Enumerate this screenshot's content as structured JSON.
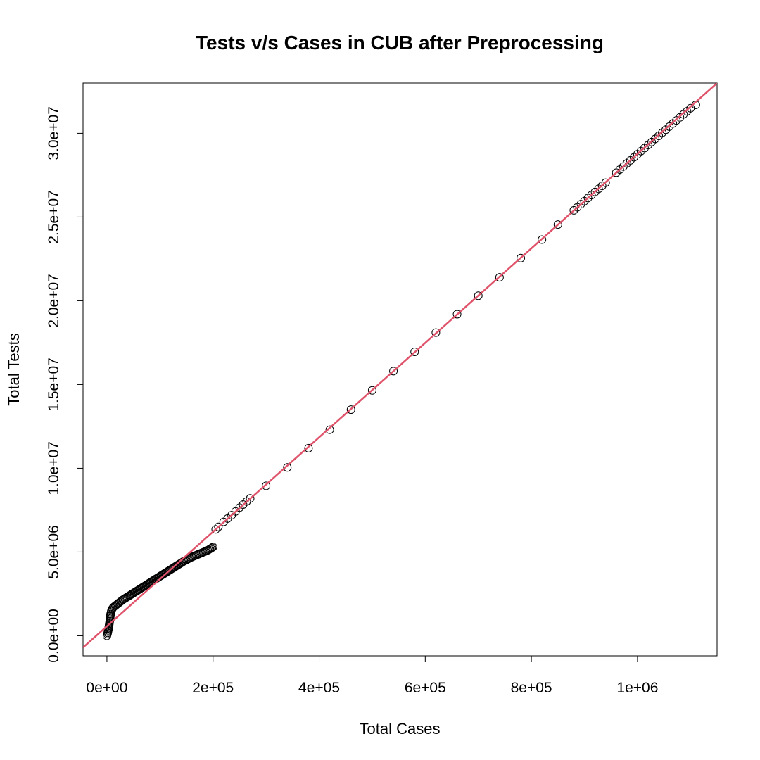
{
  "chart_data": {
    "type": "scatter",
    "title": "Tests v/s Cases in CUB after Preprocessing",
    "xlabel": "Total Cases",
    "ylabel": "Total Tests",
    "xlim": [
      -45000,
      1150000
    ],
    "ylim": [
      -1200000,
      33000000
    ],
    "x_ticks": [
      0,
      200000,
      400000,
      600000,
      800000,
      1000000
    ],
    "x_tick_labels": [
      "0e+00",
      "2e+05",
      "4e+05",
      "6e+05",
      "8e+05",
      "1e+06"
    ],
    "y_ticks": [
      0,
      5000000,
      10000000,
      15000000,
      20000000,
      25000000,
      30000000
    ],
    "y_tick_labels": [
      "0.0e+00",
      "5.0e+06",
      "1.0e+07",
      "1.5e+07",
      "2.0e+07",
      "2.5e+07",
      "3.0e+07"
    ],
    "grid": false,
    "legend": "none",
    "series": [
      {
        "marker": "open-circle",
        "color": "#000000",
        "x": [
          0,
          1000,
          3000,
          5000,
          7000,
          9000,
          12000,
          16000,
          22000,
          30000,
          40000,
          55000,
          70000,
          85000,
          100000,
          115000,
          130000,
          145000,
          160000,
          175000,
          190000,
          200000,
          205000,
          210000,
          220000,
          235000,
          250000,
          270000,
          300000,
          340000,
          380000,
          420000,
          460000,
          500000,
          540000,
          580000,
          620000,
          660000,
          700000,
          740000,
          780000,
          820000,
          850000,
          880000,
          900000,
          920000,
          940000,
          960000,
          980000,
          1000000,
          1020000,
          1040000,
          1060000,
          1080000,
          1100000,
          1110000
        ],
        "y": [
          0,
          100000,
          400000,
          800000,
          1300000,
          1550000,
          1700000,
          1800000,
          1950000,
          2150000,
          2350000,
          2650000,
          2950000,
          3250000,
          3550000,
          3850000,
          4150000,
          4450000,
          4700000,
          4900000,
          5100000,
          5300000,
          6350000,
          6500000,
          6800000,
          7200000,
          7650000,
          8200000,
          8950000,
          10050000,
          11200000,
          12300000,
          13500000,
          14650000,
          15800000,
          16950000,
          18100000,
          19200000,
          20300000,
          21400000,
          22550000,
          23650000,
          24550000,
          25400000,
          25950000,
          26500000,
          27050000,
          27650000,
          28200000,
          28750000,
          29300000,
          29850000,
          30400000,
          30950000,
          31500000,
          31700000
        ]
      }
    ],
    "fit_line": {
      "color": "#DF536B",
      "x": [
        -45000,
        1150000
      ],
      "y": [
        -700000,
        33000000
      ]
    }
  }
}
